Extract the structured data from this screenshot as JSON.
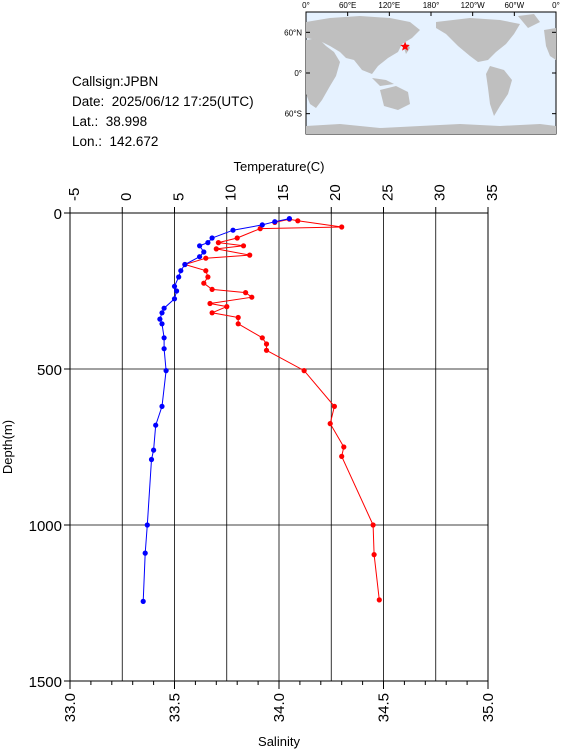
{
  "station": {
    "callsign_label": "Callsign:JPBN",
    "date_label": "Date:",
    "date_value": "2025/06/12 17:25(UTC)",
    "lat_label": "Lat.:",
    "lat_value": "38.998",
    "lon_label": "Lon.:",
    "lon_value": "142.672"
  },
  "map": {
    "top_labels": [
      "0°",
      "60°E",
      "120°E",
      "180°",
      "120°W",
      "60°W",
      "0°"
    ],
    "left_labels": [
      "60°N",
      "0°",
      "60°S"
    ],
    "land_color": "#bfbfbf",
    "ocean_color": "#e6f2ff",
    "marker_color": "#ff0000",
    "marker_lon": 142.672,
    "marker_lat": 38.998
  },
  "chart_data": {
    "type": "scatter",
    "top_axis": {
      "label": "Temperature(C)",
      "range": [
        -5,
        35
      ],
      "ticks": [
        "-5",
        "0",
        "5",
        "10",
        "15",
        "20",
        "25",
        "30",
        "35"
      ]
    },
    "bottom_axis": {
      "label": "Salinity",
      "range": [
        33.0,
        35.0
      ],
      "ticks": [
        "33.0",
        "33.5",
        "34.0",
        "34.5",
        "35.0"
      ]
    },
    "y_axis": {
      "label": "Depth(m)",
      "range": [
        0,
        1500
      ],
      "inverted": true,
      "ticks": [
        "0",
        "500",
        "1000",
        "1500"
      ]
    },
    "grid": true,
    "series": [
      {
        "axis": "top",
        "color": "#ff0000",
        "points": [
          [
            14.6,
            30
          ],
          [
            16.0,
            20
          ],
          [
            16.8,
            25
          ],
          [
            21.0,
            45
          ],
          [
            13.2,
            50
          ],
          [
            11.0,
            80
          ],
          [
            9.2,
            95
          ],
          [
            11.6,
            105
          ],
          [
            9.0,
            115
          ],
          [
            12.2,
            135
          ],
          [
            8.0,
            145
          ],
          [
            6.0,
            165
          ],
          [
            8.0,
            185
          ],
          [
            8.2,
            205
          ],
          [
            7.8,
            225
          ],
          [
            8.6,
            245
          ],
          [
            11.8,
            255
          ],
          [
            12.4,
            270
          ],
          [
            8.4,
            290
          ],
          [
            10.0,
            300
          ],
          [
            8.6,
            320
          ],
          [
            11.1,
            335
          ],
          [
            11.1,
            355
          ],
          [
            13.4,
            400
          ],
          [
            13.8,
            420
          ],
          [
            13.8,
            440
          ],
          [
            17.4,
            505
          ],
          [
            20.3,
            620
          ],
          [
            19.9,
            675
          ],
          [
            21.2,
            750
          ],
          [
            21.0,
            780
          ],
          [
            24.0,
            1000
          ],
          [
            24.1,
            1095
          ],
          [
            24.6,
            1240
          ]
        ]
      },
      {
        "axis": "bottom",
        "color": "#0000ff",
        "points": [
          [
            34.05,
            18
          ],
          [
            33.98,
            28
          ],
          [
            33.92,
            38
          ],
          [
            33.78,
            55
          ],
          [
            33.68,
            80
          ],
          [
            33.66,
            95
          ],
          [
            33.62,
            105
          ],
          [
            33.64,
            125
          ],
          [
            33.62,
            140
          ],
          [
            33.55,
            165
          ],
          [
            33.53,
            185
          ],
          [
            33.52,
            205
          ],
          [
            33.5,
            235
          ],
          [
            33.51,
            250
          ],
          [
            33.5,
            275
          ],
          [
            33.45,
            305
          ],
          [
            33.44,
            320
          ],
          [
            33.43,
            340
          ],
          [
            33.44,
            355
          ],
          [
            33.45,
            400
          ],
          [
            33.45,
            435
          ],
          [
            33.46,
            505
          ],
          [
            33.44,
            620
          ],
          [
            33.41,
            680
          ],
          [
            33.4,
            760
          ],
          [
            33.39,
            790
          ],
          [
            33.37,
            1000
          ],
          [
            33.36,
            1090
          ],
          [
            33.35,
            1245
          ]
        ]
      }
    ]
  }
}
